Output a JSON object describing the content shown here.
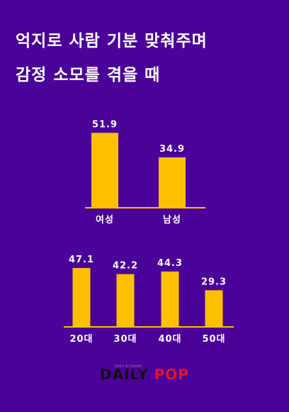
{
  "title_lines": [
    "억지로 사람 기분 맞춰주며",
    "감정 소모를 겪을 때"
  ],
  "colors": {
    "background": "#4a0299",
    "bar": "#ffc000",
    "text": "#ffffff",
    "logo_daily": "#111111",
    "logo_pop": "#e8102a"
  },
  "chart_data": [
    {
      "type": "bar",
      "categories": [
        "여성",
        "남성"
      ],
      "values": [
        51.9,
        34.9
      ],
      "ylim": [
        0,
        55
      ]
    },
    {
      "type": "bar",
      "categories": [
        "20대",
        "30대",
        "40대",
        "50대"
      ],
      "values": [
        47.1,
        42.2,
        44.3,
        29.3
      ],
      "ylim": [
        0,
        55
      ]
    }
  ],
  "logo": {
    "small_text": "DAILY ECONOMY",
    "daily": "DAILY",
    "pop": "POP"
  }
}
